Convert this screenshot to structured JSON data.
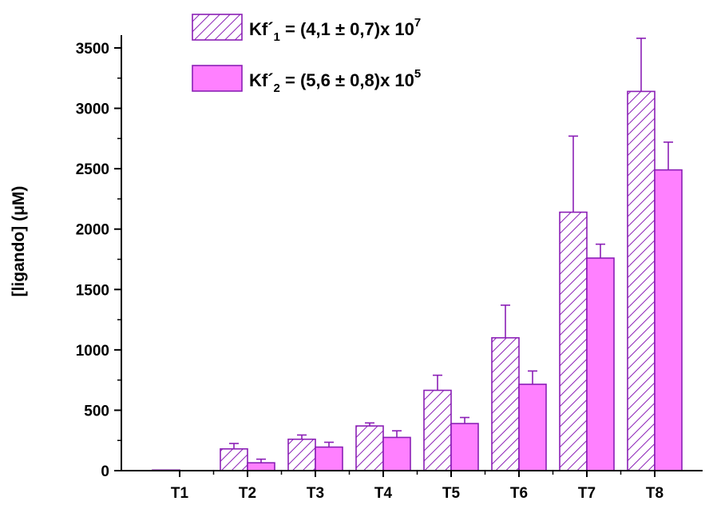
{
  "chart_data": {
    "type": "bar",
    "categories": [
      "T1",
      "T2",
      "T3",
      "T4",
      "T5",
      "T6",
      "T7",
      "T8"
    ],
    "ylabel": "[ligando] (μM)",
    "ylim": [
      0,
      3500
    ],
    "yticks": [
      0,
      500,
      1000,
      1500,
      2000,
      2500,
      3000,
      3500
    ],
    "grid": false,
    "legend_position": "top-left",
    "series": [
      {
        "name": "Kf´1 = (4,1 ± 0,7)x 107",
        "legend": {
          "prefix": "Kf´",
          "sub": "1",
          "middle": " = (4,1 ± 0,7)x 10",
          "sup": "7"
        },
        "pattern": "hatched",
        "color": "#8b1fb6",
        "values": [
          5,
          180,
          260,
          370,
          665,
          1100,
          2140,
          3140
        ],
        "errors": [
          0,
          45,
          35,
          25,
          125,
          270,
          630,
          440
        ]
      },
      {
        "name": "Kf´2 = (5,6 ± 0,8)x 105",
        "legend": {
          "prefix": "Kf´",
          "sub": "2",
          "middle": " = (5,6 ± 0,8)x 10",
          "sup": "5"
        },
        "pattern": "solid",
        "fill": "#ff80ff",
        "color": "#8b1fb6",
        "values": [
          0,
          65,
          195,
          275,
          390,
          715,
          1760,
          2490
        ],
        "errors": [
          0,
          30,
          40,
          55,
          50,
          110,
          115,
          230
        ]
      }
    ]
  }
}
